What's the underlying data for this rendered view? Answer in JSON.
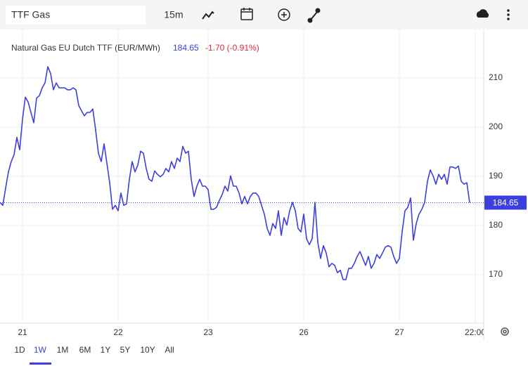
{
  "toolbar": {
    "symbol": "TTF Gas",
    "interval": "15m"
  },
  "ranges": {
    "items": [
      "1D",
      "1W",
      "1M",
      "6M",
      "1Y",
      "5Y",
      "10Y",
      "All"
    ],
    "selected": 1
  },
  "chart_data": {
    "type": "line",
    "title": "Natural Gas EU Dutch TTF (EUR/MWh)",
    "last_value": 184.65,
    "change_label": "-1.70 (-0.91%)",
    "series": [
      {
        "name": "Natural Gas EU Dutch TTF (EUR/MWh)",
        "color": "#3b3fe0",
        "values": [
          184.7,
          184.1,
          187.6,
          190.9,
          193.0,
          194.4,
          197.9,
          195.4,
          201.6,
          206.1,
          205.1,
          203.0,
          200.9,
          205.9,
          206.4,
          208.0,
          209.0,
          212.3,
          210.9,
          207.6,
          209.0,
          208.0,
          208.0,
          208.0,
          207.6,
          207.6,
          208.0,
          207.6,
          204.4,
          203.3,
          202.3,
          203.0,
          203.0,
          203.7,
          199.4,
          194.7,
          193.0,
          196.6,
          192.7,
          188.7,
          183.3,
          184.1,
          183.0,
          186.6,
          184.1,
          184.4,
          189.4,
          193.0,
          190.9,
          192.3,
          195.1,
          194.7,
          191.6,
          189.4,
          189.0,
          191.1,
          190.4,
          189.9,
          190.4,
          191.6,
          190.9,
          193.0,
          191.6,
          193.7,
          193.0,
          196.1,
          194.7,
          195.1,
          189.4,
          185.9,
          188.0,
          189.4,
          188.0,
          188.0,
          187.3,
          183.3,
          183.3,
          183.7,
          185.1,
          186.3,
          188.0,
          187.0,
          190.1,
          188.0,
          188.0,
          186.6,
          184.4,
          185.9,
          184.4,
          185.9,
          186.6,
          186.6,
          185.9,
          184.1,
          182.3,
          179.4,
          178.0,
          180.4,
          179.4,
          183.0,
          178.0,
          181.6,
          180.1,
          183.0,
          184.7,
          183.0,
          179.4,
          178.7,
          182.3,
          177.3,
          176.1,
          177.3,
          184.7,
          176.6,
          173.3,
          175.9,
          174.4,
          171.6,
          172.3,
          171.9,
          170.4,
          170.9,
          169.0,
          169.0,
          171.3,
          171.3,
          172.3,
          173.7,
          174.7,
          173.3,
          171.9,
          173.7,
          171.3,
          172.3,
          174.1,
          173.3,
          174.4,
          175.6,
          175.9,
          175.6,
          173.7,
          172.3,
          173.3,
          178.7,
          183.0,
          183.7,
          185.6,
          177.0,
          180.4,
          182.3,
          183.3,
          184.7,
          189.0,
          191.3,
          190.1,
          188.4,
          190.4,
          189.4,
          190.4,
          188.4,
          191.9,
          191.9,
          191.6,
          192.1,
          189.0,
          188.4,
          188.7,
          184.65
        ]
      }
    ],
    "xlim": [
      0,
      172
    ],
    "xticks": [
      {
        "value": 8,
        "label": "21"
      },
      {
        "value": 42,
        "label": "22"
      },
      {
        "value": 74,
        "label": "23"
      },
      {
        "value": 108,
        "label": "26"
      },
      {
        "value": 142,
        "label": "27"
      },
      {
        "value": 169,
        "label": "22:00"
      }
    ],
    "ylim": [
      160,
      220
    ],
    "yticks": [
      170,
      180,
      190,
      200,
      210
    ],
    "grid": true
  }
}
